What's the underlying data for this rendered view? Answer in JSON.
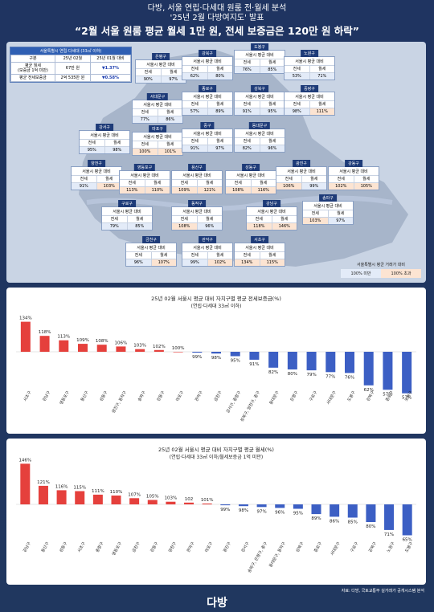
{
  "header": {
    "line1": "다방, 서울 연립·다세대 원룸 전·월세 분석",
    "line2": "'25년 2월 다방여지도' 발표",
    "headline": "“2월 서울 원룸 평균 월세 1만 원, 전세 보증금은 120만 원 하락”"
  },
  "summary": {
    "title": "서울특별시 연립·다세대 (33㎡ 이하)",
    "col_label": "구분",
    "col_month": "25년 02월",
    "col_change": "25년 01월 대비",
    "rent_label1": "평균 월세",
    "rent_label2": "(보증금 1억 미만)",
    "rent_value": "67만 원",
    "rent_change": "▼1.37%",
    "jeonse_label": "평균 전세보증금",
    "jeonse_value": "2억 535만 원",
    "jeonse_change": "▼0.58%"
  },
  "card_labels": {
    "sub": "서울시 평균 대비",
    "jeonse": "전세",
    "wolse": "월세"
  },
  "districts": [
    {
      "name": "은평구",
      "jeonse": "90%",
      "wolse": "97%"
    },
    {
      "name": "강북구",
      "jeonse": "62%",
      "wolse": "80%"
    },
    {
      "name": "도봉구",
      "jeonse": "76%",
      "wolse": "85%"
    },
    {
      "name": "노원구",
      "jeonse": "53%",
      "wolse": "71%"
    },
    {
      "name": "서대문구",
      "jeonse": "77%",
      "wolse": "86%"
    },
    {
      "name": "종로구",
      "jeonse": "57%",
      "wolse": "89%"
    },
    {
      "name": "성북구",
      "jeonse": "91%",
      "wolse": "95%"
    },
    {
      "name": "중랑구",
      "jeonse": "98%",
      "wolse": "111%"
    },
    {
      "name": "강서구",
      "jeonse": "95%",
      "wolse": "98%"
    },
    {
      "name": "마포구",
      "jeonse": "100%",
      "wolse": "101%"
    },
    {
      "name": "중구",
      "jeonse": "91%",
      "wolse": "97%"
    },
    {
      "name": "동대문구",
      "jeonse": "82%",
      "wolse": "96%"
    },
    {
      "name": "양천구",
      "jeonse": "91%",
      "wolse": "103%"
    },
    {
      "name": "영등포구",
      "jeonse": "113%",
      "wolse": "110%"
    },
    {
      "name": "용산구",
      "jeonse": "109%",
      "wolse": "121%"
    },
    {
      "name": "성동구",
      "jeonse": "108%",
      "wolse": "116%"
    },
    {
      "name": "광진구",
      "jeonse": "106%",
      "wolse": "99%"
    },
    {
      "name": "강동구",
      "jeonse": "102%",
      "wolse": "105%"
    },
    {
      "name": "구로구",
      "jeonse": "79%",
      "wolse": "85%"
    },
    {
      "name": "동작구",
      "jeonse": "108%",
      "wolse": "96%"
    },
    {
      "name": "강남구",
      "jeonse": "118%",
      "wolse": "146%"
    },
    {
      "name": "송파구",
      "jeonse": "103%",
      "wolse": "97%"
    },
    {
      "name": "금천구",
      "jeonse": "96%",
      "wolse": "107%"
    },
    {
      "name": "관악구",
      "jeonse": "99%",
      "wolse": "102%"
    },
    {
      "name": "서초구",
      "jeonse": "134%",
      "wolse": "115%"
    }
  ],
  "legend": {
    "title": "서울특별시 평균 거래가 대비",
    "below": "100% 미만",
    "above": "100% 초과"
  },
  "colors": {
    "navy": "#1f3461",
    "red": "#e5403c",
    "blue": "#3c5fc4",
    "below_bg": "#e3ebf8",
    "above_bg": "#fce4d2"
  },
  "chart_data": [
    {
      "type": "bar",
      "title": "25년 02월 서울시 평균 대비 자치구별 평균 전세보증금(%)",
      "subtitle": "(연립·다세대 33㎡ 이하)",
      "categories": [
        "서초구",
        "강남구",
        "영등포구",
        "용산구",
        "성동구",
        "광진구, 동작구",
        "송파구",
        "강동구",
        "마포구",
        "관악구",
        "금천구",
        "강서구, 중랑구",
        "성북구, 양천구, 중구",
        "동대문구",
        "은평구",
        "구로구",
        "서대문구",
        "도봉구",
        "강북구",
        "종로구",
        "노원구"
      ],
      "values": [
        134,
        118,
        113,
        109,
        108,
        106,
        103,
        102,
        100,
        99,
        98,
        95,
        91,
        82,
        80,
        79,
        77,
        76,
        62,
        57,
        53
      ],
      "value_labels": [
        "134%",
        "118%",
        "113%",
        "109%",
        "108%",
        "106%",
        "103%",
        "102%",
        "100%",
        "99%",
        "98%",
        "95%",
        "91%",
        "82%",
        "80%",
        "79%",
        "77%",
        "76%",
        "62%",
        "57%",
        "53%"
      ],
      "baseline": 100
    },
    {
      "type": "bar",
      "title": "25년 02월 서울시 평균 대비 자치구별 평균 월세(%)",
      "subtitle": "(연립·다세대 33㎡ 이하/월세보증금 1억 미만)",
      "categories": [
        "강남구",
        "용산구",
        "성동구",
        "서초구",
        "중랑구",
        "영등포구",
        "금천구",
        "강동구",
        "양천구",
        "관악구",
        "마포구",
        "광진구",
        "강서구",
        "송파구, 은평구, 중구",
        "동대문구, 동작구",
        "성북구",
        "종로구",
        "서대문구",
        "구로구",
        "강북구",
        "노원구",
        "도봉구"
      ],
      "values": [
        146,
        121,
        116,
        115,
        111,
        110,
        107,
        105,
        103,
        102,
        101,
        99,
        98,
        97,
        96,
        95,
        89,
        86,
        85,
        80,
        71,
        65
      ],
      "value_labels": [
        "146%",
        "121%",
        "116%",
        "115%",
        "111%",
        "110%",
        "107%",
        "105%",
        "103%",
        "102",
        "101%",
        "99%",
        "98%",
        "97%",
        "96%",
        "95%",
        "89%",
        "86%",
        "85%",
        "80%",
        "71%",
        "65%"
      ],
      "baseline": 100
    }
  ],
  "footer": {
    "source": "자료: 다방, 국토교통부 실거래가 공개시스템 분석",
    "logo": "다방"
  }
}
